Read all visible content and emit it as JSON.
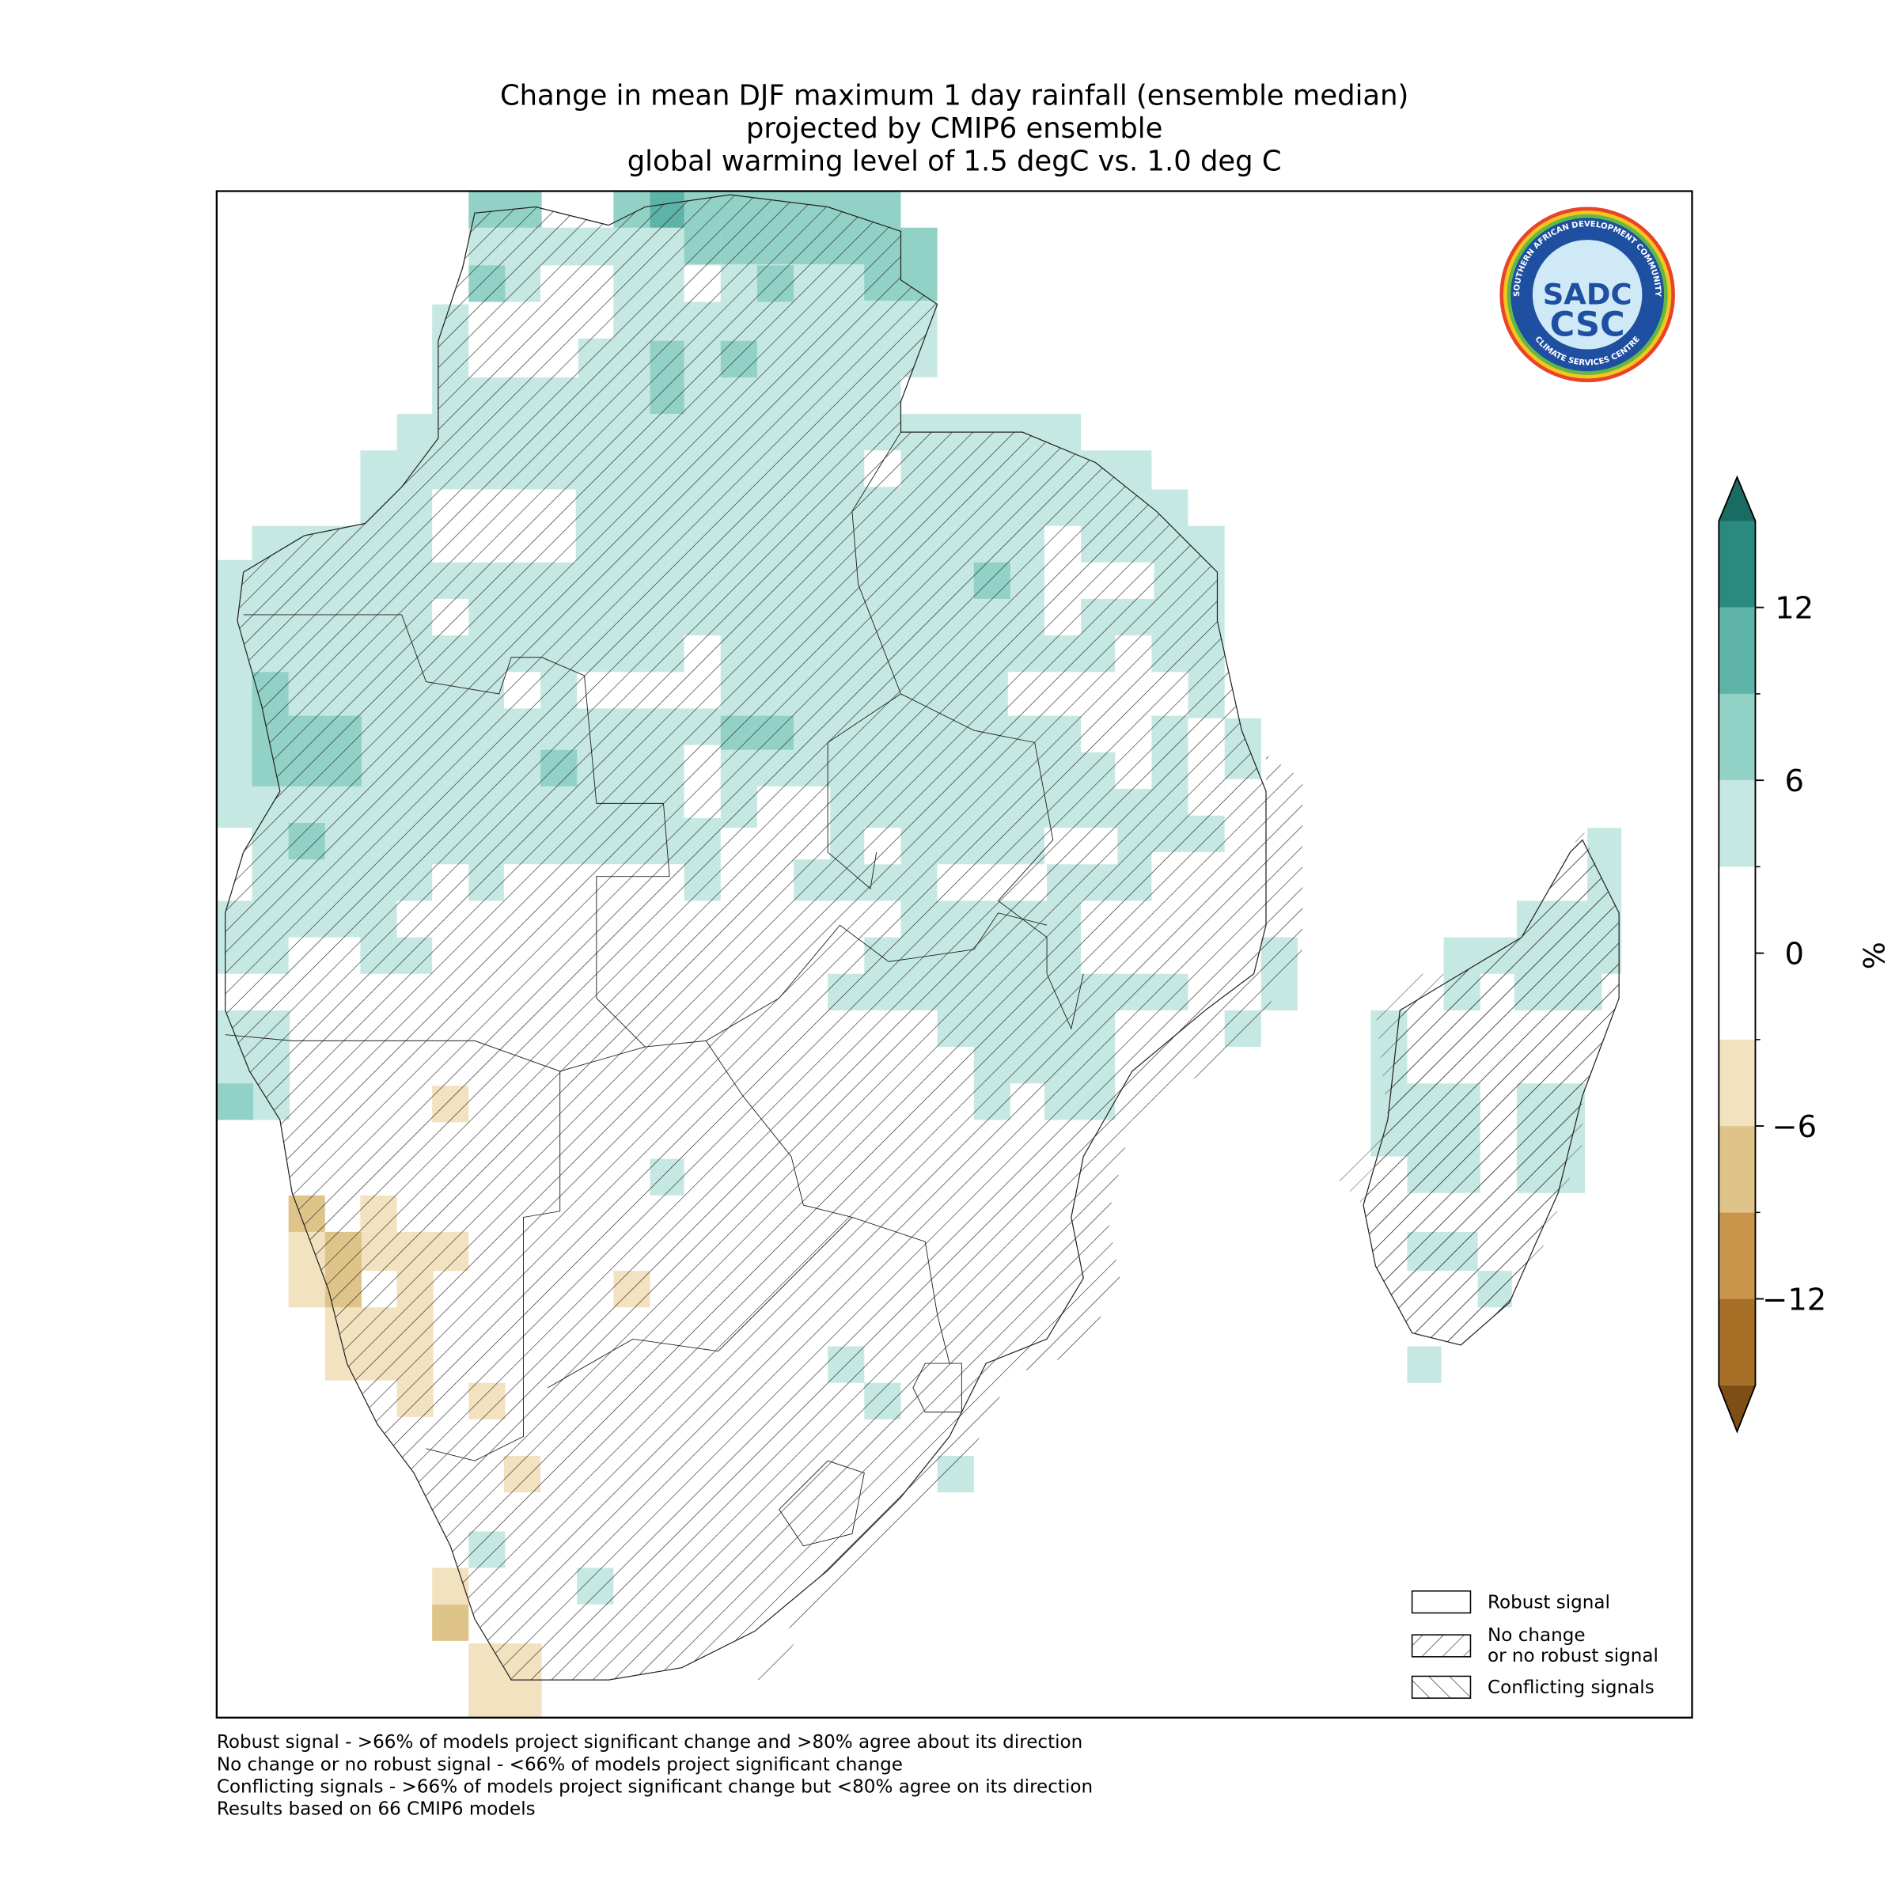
{
  "title": [
    "Change in mean DJF maximum 1 day rainfall (ensemble median)",
    "projected by CMIP6 ensemble",
    "global warming level of 1.5 degC vs. 1.0 deg C"
  ],
  "colorbar": {
    "label": "%",
    "clim": [
      -15,
      15
    ],
    "colors": [
      "#a86f27",
      "#c8954a",
      "#dfc48a",
      "#f3e2bf",
      "#ffffff",
      "#ffffff",
      "#c6e8e3",
      "#92d2c6",
      "#5db3a8",
      "#2a8a80"
    ],
    "extend_colors": [
      "#7f4d16",
      "#1a6b63"
    ],
    "ticks": [
      {
        "value": -12,
        "label": "−12"
      },
      {
        "value": -6,
        "label": "−6"
      },
      0,
      6,
      12
    ]
  },
  "legend": [
    {
      "label": "Robust signal",
      "hatch": "none"
    },
    {
      "label": "No change\nor no robust signal",
      "hatch": "/"
    },
    {
      "label": "Conflicting signals",
      "hatch": "\\"
    }
  ],
  "footnotes": [
    "Robust signal - >66% of models project significant change and >80% agree about its direction",
    "No change or no robust signal - <66% of models project significant change",
    "Conflicting signals - >66% of models project significant change but <80% agree on its direction",
    "Results based on 66 CMIP6 models"
  ],
  "logo": {
    "ring_top": "SOUTHERN AFRICAN DEVELOPMENT COMMUNITY",
    "ring_bottom": "CLIMATE SERVICES CENTRE",
    "acronym_top": "SADC",
    "acronym_bottom": "CSC"
  }
}
